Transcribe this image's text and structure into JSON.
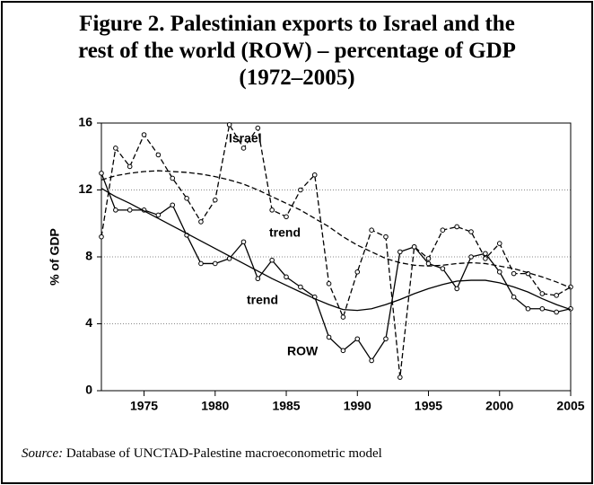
{
  "chart_data": {
    "type": "line",
    "title": [
      "Figure 2. Palestinian exports to Israel and the",
      "rest of the world (ROW) – percentage of GDP",
      "(1972–2005)"
    ],
    "y_label": "% of GDP",
    "x": [
      1972,
      1973,
      1974,
      1975,
      1976,
      1977,
      1978,
      1979,
      1980,
      1981,
      1982,
      1983,
      1984,
      1985,
      1986,
      1987,
      1988,
      1989,
      1990,
      1991,
      1992,
      1993,
      1994,
      1995,
      1996,
      1997,
      1998,
      1999,
      2000,
      2001,
      2002,
      2003,
      2004,
      2005
    ],
    "xlim": [
      1972,
      2005
    ],
    "xticks": [
      1975,
      1980,
      1985,
      1990,
      1995,
      2000,
      2005
    ],
    "ylim": [
      0,
      16
    ],
    "yticks": [
      0,
      4,
      8,
      12,
      16
    ],
    "grid": true,
    "series": [
      {
        "name": "Israel",
        "color": "#000000",
        "dashed": true,
        "markers": true,
        "values": [
          9.2,
          14.5,
          13.4,
          15.3,
          14.1,
          12.7,
          11.5,
          10.1,
          11.4,
          15.9,
          14.5,
          15.7,
          10.8,
          10.4,
          12.0,
          12.9,
          6.4,
          4.4,
          7.1,
          9.6,
          9.2,
          0.8,
          8.6,
          7.9,
          9.6,
          9.8,
          9.5,
          7.9,
          8.8,
          7.0,
          7.0,
          5.8,
          5.7,
          6.2
        ]
      },
      {
        "name": "ROW",
        "color": "#000000",
        "dashed": false,
        "markers": true,
        "values": [
          13.0,
          10.8,
          10.8,
          10.8,
          10.5,
          11.1,
          9.3,
          7.6,
          7.6,
          7.9,
          8.9,
          6.7,
          7.8,
          6.8,
          6.2,
          5.6,
          3.2,
          2.4,
          3.1,
          1.8,
          3.1,
          8.3,
          8.6,
          7.6,
          7.3,
          6.1,
          8.0,
          8.2,
          7.1,
          5.6,
          4.9,
          4.9,
          4.7,
          4.9
        ]
      },
      {
        "name": "trend",
        "color": "#000000",
        "dashed": true,
        "markers": false,
        "values": [
          12.6,
          12.85,
          13.0,
          13.1,
          13.15,
          13.1,
          13.05,
          12.95,
          12.8,
          12.6,
          12.35,
          12.0,
          11.6,
          11.2,
          10.8,
          10.3,
          9.8,
          9.2,
          8.7,
          8.3,
          7.9,
          7.65,
          7.5,
          7.45,
          7.5,
          7.6,
          7.65,
          7.6,
          7.45,
          7.3,
          7.05,
          6.8,
          6.5,
          6.15
        ]
      },
      {
        "name": "trend",
        "color": "#000000",
        "dashed": false,
        "markers": false,
        "values": [
          12.1,
          11.6,
          11.2,
          10.75,
          10.3,
          9.85,
          9.4,
          8.95,
          8.5,
          8.05,
          7.6,
          7.15,
          6.7,
          6.3,
          5.9,
          5.5,
          5.15,
          4.85,
          4.8,
          4.9,
          5.15,
          5.45,
          5.8,
          6.1,
          6.35,
          6.55,
          6.6,
          6.6,
          6.45,
          6.2,
          5.9,
          5.5,
          5.15,
          4.85
        ]
      }
    ],
    "source": {
      "label": "Source:",
      "text": "Database of UNCTAD-Palestine macroeconometric model"
    }
  }
}
